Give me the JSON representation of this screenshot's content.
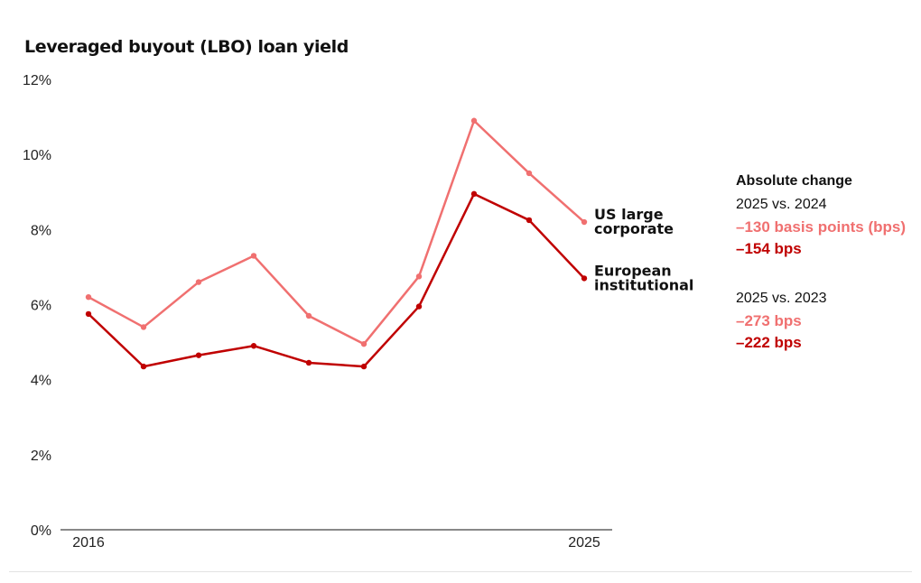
{
  "chart_data": {
    "type": "line",
    "title": "Leveraged buyout (LBO) loan yield",
    "x": [
      2016,
      2017,
      2018,
      2019,
      2020,
      2021,
      2022,
      2023,
      2024,
      2025
    ],
    "x_tick_labels": [
      "2016",
      "2025"
    ],
    "ylim": [
      0,
      12
    ],
    "y_ticks": [
      0,
      2,
      4,
      6,
      8,
      10,
      12
    ],
    "y_tick_labels": [
      "0%",
      "2%",
      "4%",
      "6%",
      "8%",
      "10%",
      "12%"
    ],
    "series": [
      {
        "name": "US large corporate",
        "label_lines": [
          "US large",
          "corporate"
        ],
        "color": "#f07070",
        "values": [
          6.2,
          5.4,
          6.6,
          7.3,
          5.7,
          4.95,
          6.75,
          10.9,
          9.5,
          8.2
        ]
      },
      {
        "name": "European institutional",
        "label_lines": [
          "European",
          "institutional"
        ],
        "color": "#c00000",
        "values": [
          5.75,
          4.35,
          4.65,
          4.9,
          4.45,
          4.35,
          5.95,
          8.95,
          8.25,
          6.7
        ]
      }
    ]
  },
  "panel": {
    "heading": "Absolute change",
    "groups": [
      {
        "label": "2025 vs. 2024",
        "us_change": "–130 basis points (bps)",
        "eu_change": "–154 bps"
      },
      {
        "label": "2025 vs. 2023",
        "us_change": "–273 bps",
        "eu_change": "–222 bps"
      }
    ]
  },
  "colors": {
    "us": "#f07070",
    "eu": "#c00000",
    "axis": "#111111"
  }
}
